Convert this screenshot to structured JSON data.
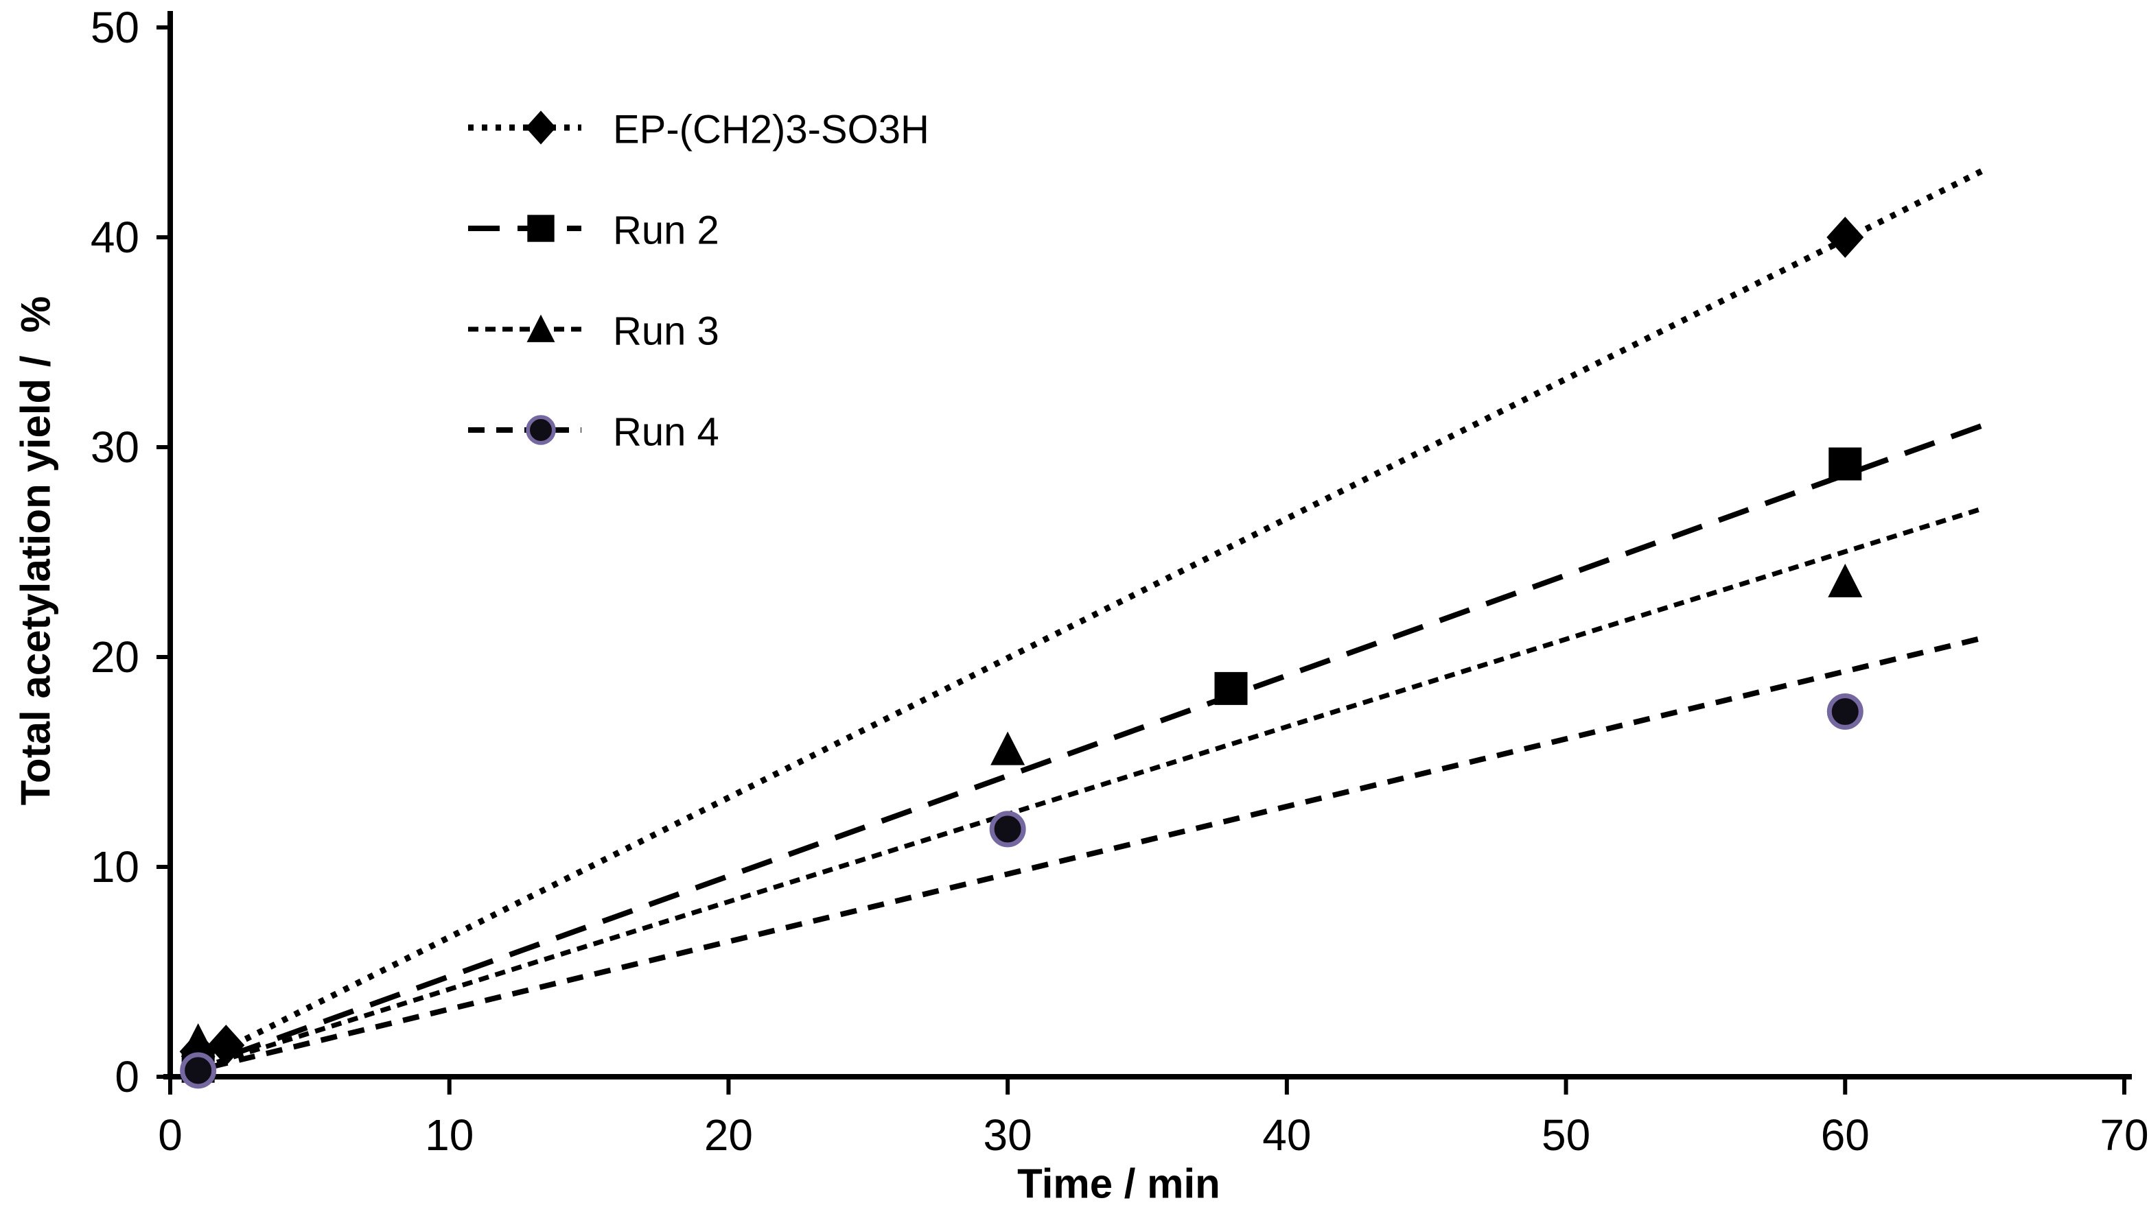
{
  "figure": {
    "background": "#ffffff",
    "foreground": "#000000"
  },
  "chart_data": {
    "type": "scatter",
    "title": "",
    "xlabel": "Time / min",
    "ylabel": "Total acetylation yield /  %",
    "xlim": [
      0,
      70
    ],
    "ylim": [
      0,
      50
    ],
    "xticks": [
      0,
      10,
      20,
      30,
      40,
      50,
      60,
      70
    ],
    "yticks": [
      0,
      10,
      20,
      30,
      40,
      50
    ],
    "grid": false,
    "legend_position": "upper-left-inside",
    "series": [
      {
        "name": "EP-(CH2)3-SO3H",
        "marker": "diamond",
        "marker_color": "#000000",
        "line_style": "dotted",
        "line_color": "#000000",
        "points": [
          [
            1,
            1.2
          ],
          [
            2,
            1.5
          ],
          [
            60,
            40.0
          ]
        ],
        "trendline": {
          "slope": 0.665,
          "intercept": 0,
          "x_start": 0.5,
          "x_end": 65
        }
      },
      {
        "name": "Run 2",
        "marker": "square",
        "marker_color": "#000000",
        "line_style": "long-dash",
        "line_color": "#000000",
        "points": [
          [
            1,
            0.5
          ],
          [
            38,
            18.5
          ],
          [
            60,
            29.2
          ]
        ],
        "trendline": {
          "slope": 0.478,
          "intercept": 0,
          "x_start": 0.5,
          "x_end": 65
        }
      },
      {
        "name": "Run 3",
        "marker": "triangle",
        "marker_color": "#000000",
        "line_style": "dense-dash",
        "line_color": "#000000",
        "points": [
          [
            1,
            1.7
          ],
          [
            30,
            15.6
          ],
          [
            60,
            23.6
          ]
        ],
        "trendline": {
          "slope": 0.417,
          "intercept": 0,
          "x_start": 0.5,
          "x_end": 65
        }
      },
      {
        "name": "Run 4",
        "marker": "circle",
        "marker_color": "#0f0e16",
        "marker_ring_color": "#7568a0",
        "line_style": "medium-dash",
        "line_color": "#000000",
        "points": [
          [
            1,
            0.3
          ],
          [
            30,
            11.8
          ],
          [
            60,
            17.4
          ]
        ],
        "trendline": {
          "slope": 0.322,
          "intercept": 0,
          "x_start": 0.5,
          "x_end": 65
        }
      }
    ]
  }
}
